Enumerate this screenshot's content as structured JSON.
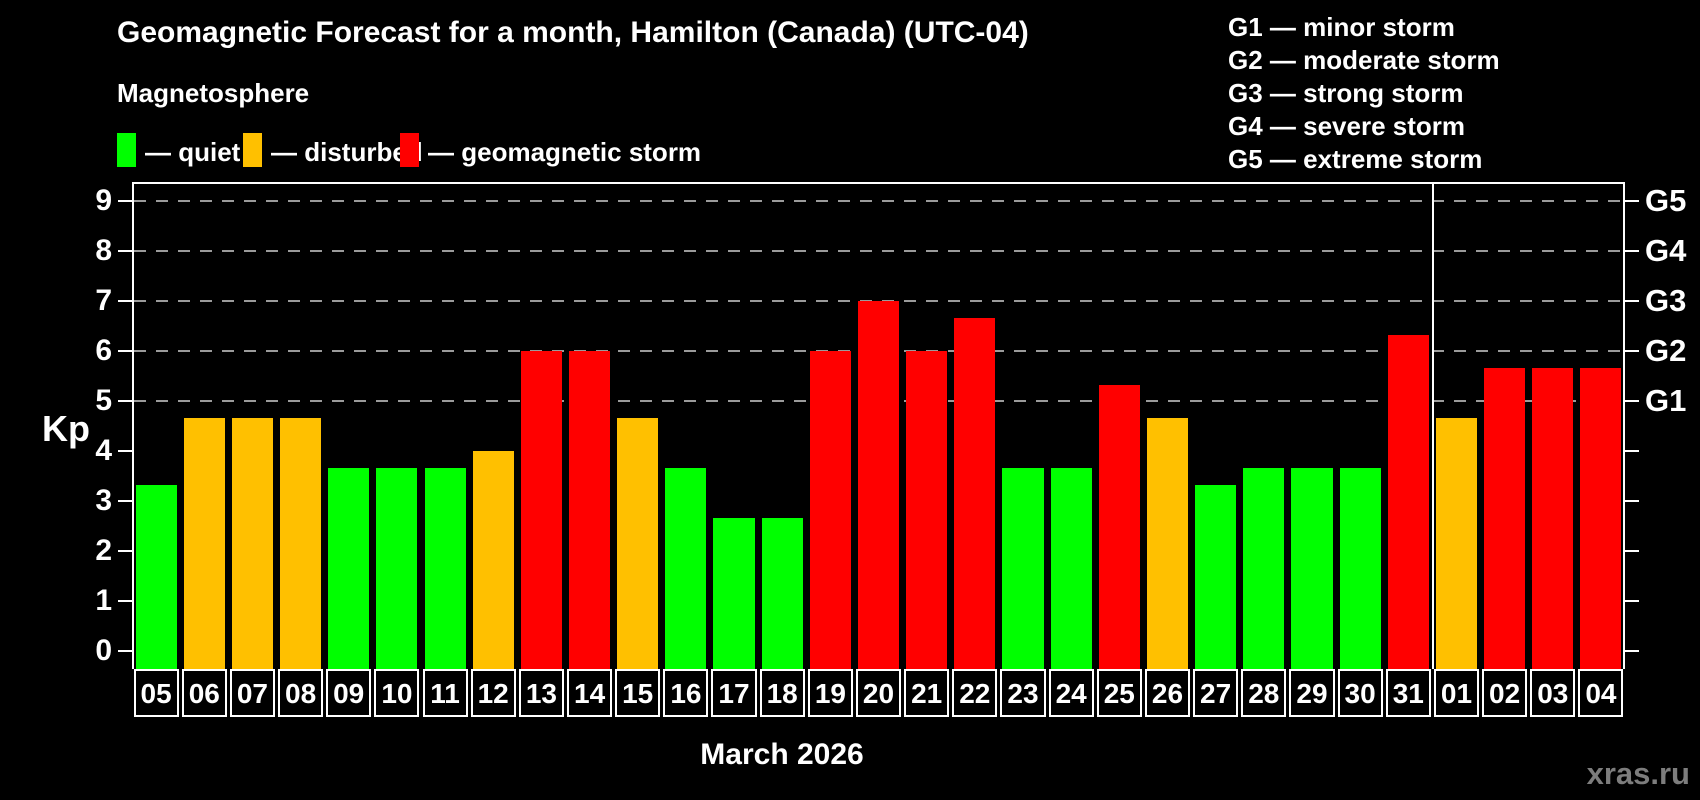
{
  "title": "Geomagnetic Forecast for a month, Hamilton (Canada) (UTC-04)",
  "subtitle": "Magnetosphere",
  "legend": {
    "items": [
      {
        "key": "quiet",
        "label": "— quiet",
        "color": "#00ff00"
      },
      {
        "key": "disturbed",
        "label": "— disturbed",
        "color": "#ffc000"
      },
      {
        "key": "storm",
        "label": "— geomagnetic storm",
        "color": "#ff0000"
      }
    ]
  },
  "g_scale_legend": {
    "items": [
      {
        "label": "G1 — minor storm"
      },
      {
        "label": "G2 — moderate storm"
      },
      {
        "label": "G3 — strong storm"
      },
      {
        "label": "G4 — severe storm"
      },
      {
        "label": "G5 — extreme storm"
      }
    ]
  },
  "chart_data": {
    "type": "bar",
    "title": "Geomagnetic Forecast for a month, Hamilton (Canada) (UTC-04)",
    "ylabel": "Kp",
    "xlabel": "March 2026",
    "ylim": [
      0,
      9
    ],
    "yticks": [
      0,
      1,
      2,
      3,
      4,
      5,
      6,
      7,
      8,
      9
    ],
    "grid": "dashed horizontal at G-storm levels",
    "gridlines_at": [
      5,
      6,
      7,
      8,
      9
    ],
    "right_axis_labels": [
      {
        "value": 5,
        "label": "G1"
      },
      {
        "value": 6,
        "label": "G2"
      },
      {
        "value": 7,
        "label": "G3"
      },
      {
        "value": 8,
        "label": "G4"
      },
      {
        "value": 9,
        "label": "G5"
      }
    ],
    "categories": [
      "05",
      "06",
      "07",
      "08",
      "09",
      "10",
      "11",
      "12",
      "13",
      "14",
      "15",
      "16",
      "17",
      "18",
      "19",
      "20",
      "21",
      "22",
      "23",
      "24",
      "25",
      "26",
      "27",
      "28",
      "29",
      "30",
      "31",
      "01",
      "02",
      "03",
      "04"
    ],
    "values": [
      3.33,
      4.67,
      4.67,
      4.67,
      3.67,
      3.67,
      3.67,
      4.0,
      6.0,
      6.0,
      4.67,
      3.67,
      2.67,
      2.67,
      6.0,
      7.0,
      6.0,
      6.67,
      3.67,
      3.67,
      5.33,
      4.67,
      3.33,
      3.67,
      3.67,
      3.67,
      6.33,
      4.67,
      5.67,
      5.67,
      5.67
    ],
    "statuses": [
      "quiet",
      "disturbed",
      "disturbed",
      "disturbed",
      "quiet",
      "quiet",
      "quiet",
      "disturbed",
      "storm",
      "storm",
      "disturbed",
      "quiet",
      "quiet",
      "quiet",
      "storm",
      "storm",
      "storm",
      "storm",
      "quiet",
      "quiet",
      "storm",
      "disturbed",
      "quiet",
      "quiet",
      "quiet",
      "quiet",
      "storm",
      "disturbed",
      "storm",
      "storm",
      "storm"
    ],
    "status_colors": {
      "quiet": "#00ff00",
      "disturbed": "#ffc000",
      "storm": "#ff0000"
    },
    "month_separator_after_index": 26
  },
  "watermark": "xras.ru"
}
